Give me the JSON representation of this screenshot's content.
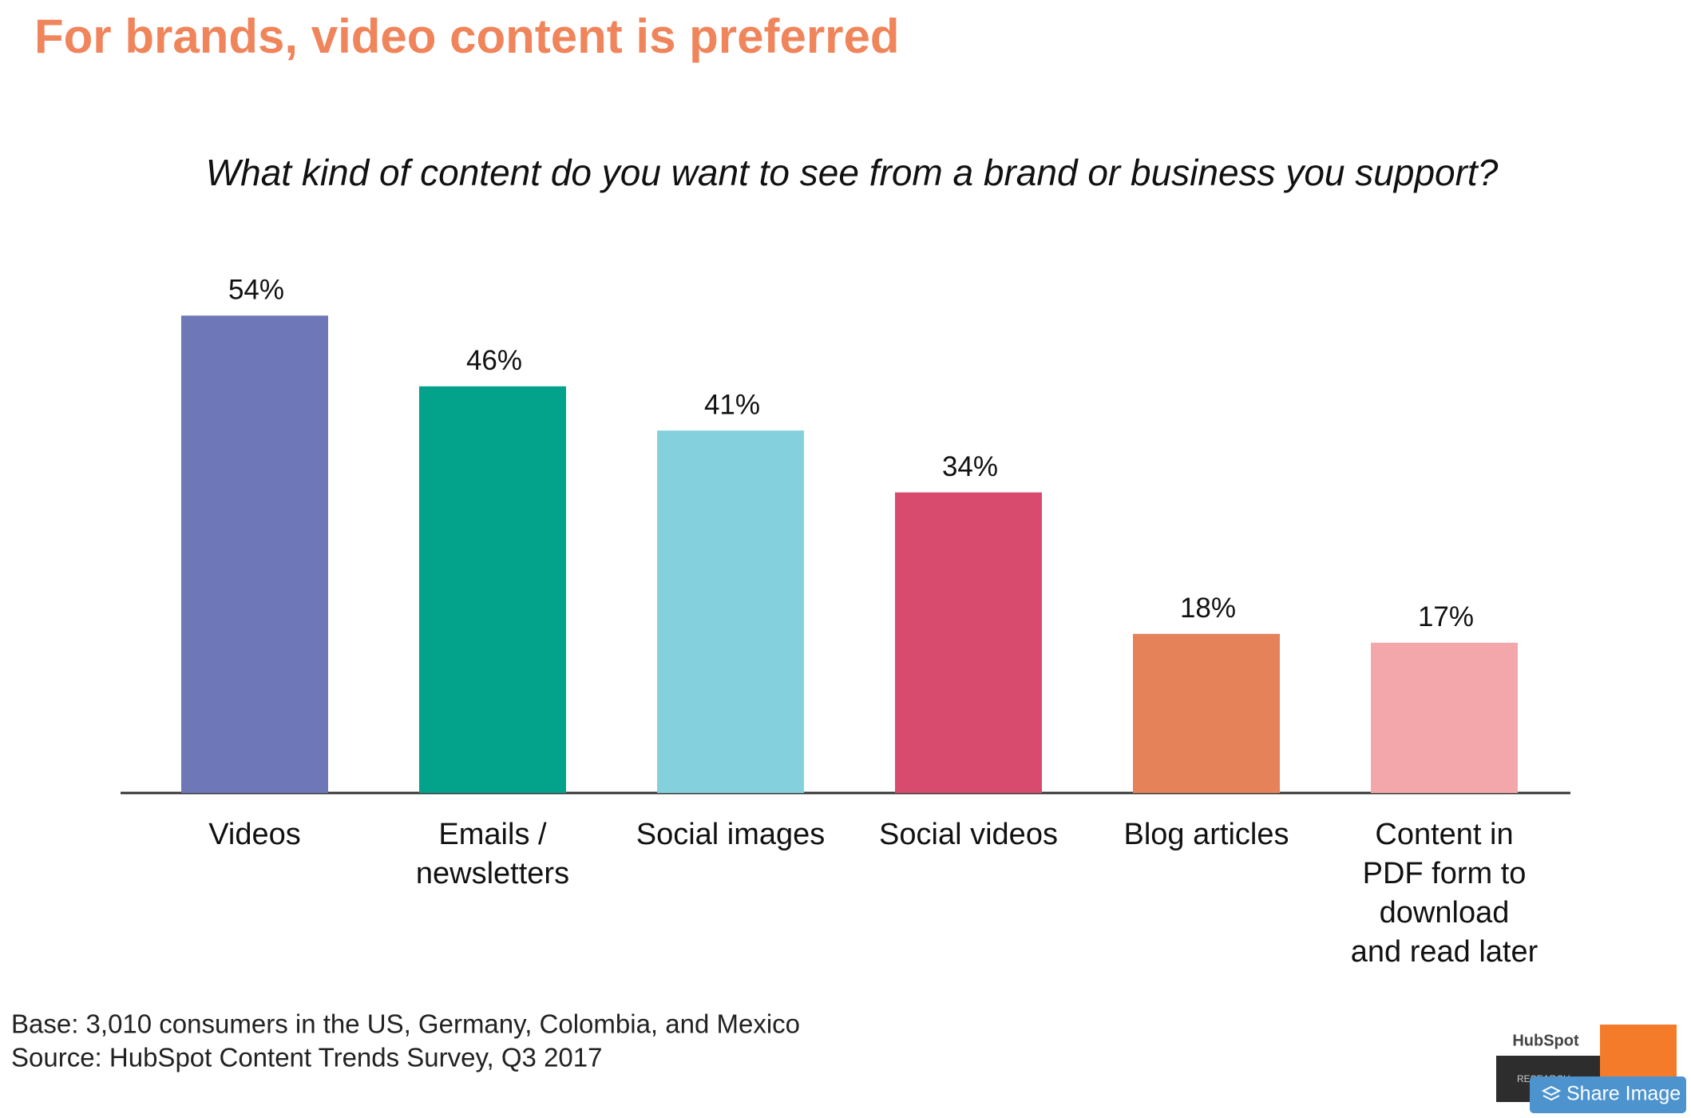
{
  "chart_data": {
    "type": "bar",
    "title": "For brands, video content is preferred",
    "subtitle": "What kind of content do you want to see from a brand or business you support?",
    "categories": [
      "Videos",
      "Emails /\nnewsletters",
      "Social images",
      "Social videos",
      "Blog articles",
      "Content in\nPDF form to\ndownload\nand read later"
    ],
    "values": [
      54,
      46,
      41,
      34,
      18,
      17
    ],
    "value_labels": [
      "54%",
      "46%",
      "41%",
      "34%",
      "18%",
      "17%"
    ],
    "colors": [
      "#6e77b7",
      "#02a28b",
      "#84d0dc",
      "#d84b6e",
      "#e58259",
      "#f4a7aa"
    ],
    "notes": [
      "Base: 3,010 consumers in the US, Germany, Colombia, and Mexico",
      "Source: HubSpot Content Trends Survey, Q3 2017"
    ]
  },
  "ui": {
    "logo": "HubSpot",
    "logo_sub": "RESEARCH",
    "share_button": "Share Image"
  }
}
